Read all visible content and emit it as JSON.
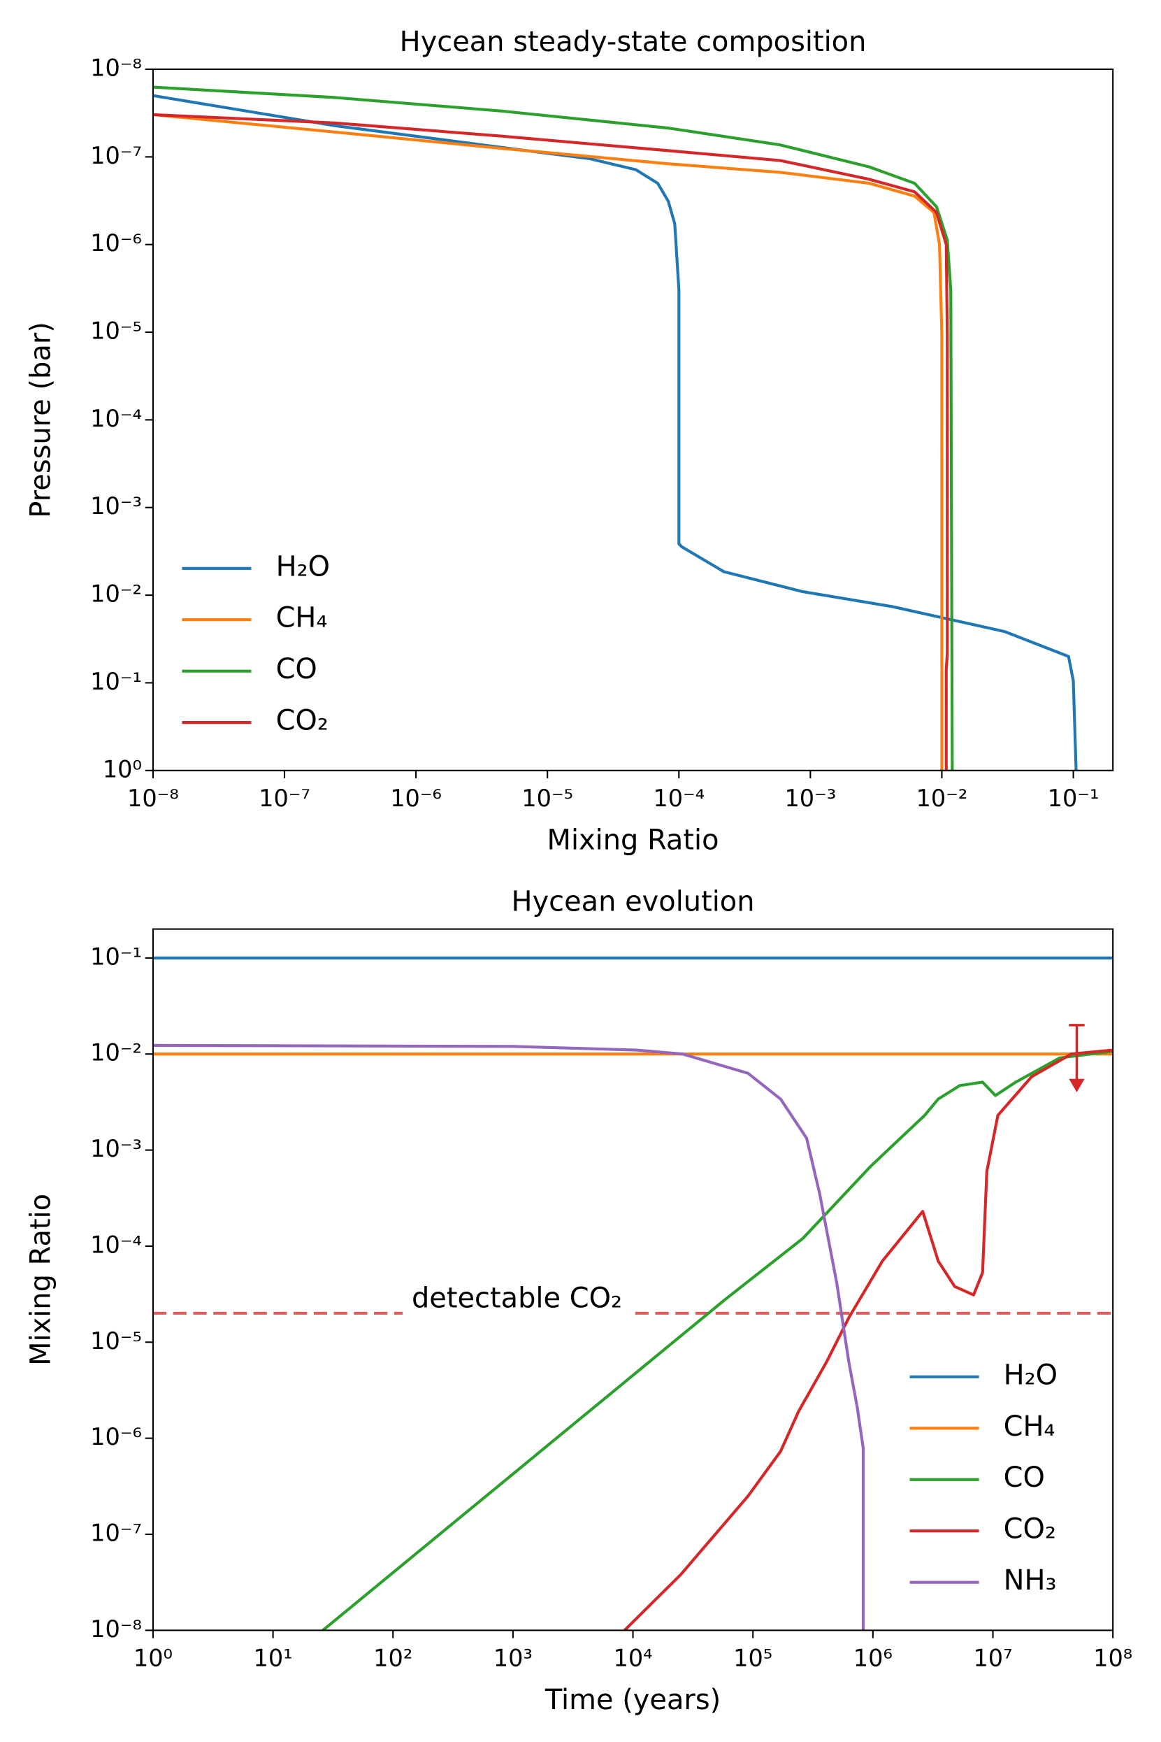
{
  "chart_data": [
    {
      "type": "line",
      "title": "Hycean steady-state composition",
      "x_label": "Mixing Ratio",
      "y_label": "Pressure (bar)",
      "xscale": "log",
      "yscale": "log",
      "xlim": [
        1e-08,
        0.2
      ],
      "ylim": [
        1,
        1e-08
      ],
      "legend": "lower left",
      "xticks": [
        {
          "value": 1e-08,
          "label": "10⁻⁸"
        },
        {
          "value": 1e-07,
          "label": "10⁻⁷"
        },
        {
          "value": 1e-06,
          "label": "10⁻⁶"
        },
        {
          "value": 1e-05,
          "label": "10⁻⁵"
        },
        {
          "value": 0.0001,
          "label": "10⁻⁴"
        },
        {
          "value": 0.001,
          "label": "10⁻³"
        },
        {
          "value": 0.01,
          "label": "10⁻²"
        },
        {
          "value": 0.1,
          "label": "10⁻¹"
        }
      ],
      "yticks": [
        {
          "value": 1e-08,
          "label": "10⁻⁸"
        },
        {
          "value": 1e-07,
          "label": "10⁻⁷"
        },
        {
          "value": 1e-06,
          "label": "10⁻⁶"
        },
        {
          "value": 1e-05,
          "label": "10⁻⁵"
        },
        {
          "value": 0.0001,
          "label": "10⁻⁴"
        },
        {
          "value": 0.001,
          "label": "10⁻³"
        },
        {
          "value": 0.01,
          "label": "10⁻²"
        },
        {
          "value": 0.1,
          "label": "10⁻¹"
        },
        {
          "value": 1,
          "label": "10⁰"
        }
      ],
      "series": [
        {
          "name": "H₂O",
          "color": "#1f77b4",
          "x": [
            1e-08,
            2.4e-07,
            4.5e-06,
            2.1e-05,
            4.7e-05,
            6.9e-05,
            8.3e-05,
            9.3e-05,
            0.0001,
            0.0001,
            0.000105,
            0.00022,
            0.00087,
            0.0042,
            0.03,
            0.092,
            0.1,
            0.105
          ],
          "values": [
            2e-08,
            4.4e-08,
            7.8e-08,
            1.05e-07,
            1.4e-07,
            2e-07,
            3.2e-07,
            5.8e-07,
            3.3e-06,
            0.0026,
            0.0028,
            0.0054,
            0.0091,
            0.0135,
            0.026,
            0.05,
            0.095,
            1
          ]
        },
        {
          "name": "CH₄",
          "color": "#ff7f0e",
          "x": [
            1e-08,
            2.4e-07,
            4.5e-06,
            8.4e-05,
            0.00059,
            0.0028,
            0.0062,
            0.0087,
            0.0096,
            0.01,
            0.01
          ],
          "values": [
            3.3e-08,
            5.2e-08,
            8e-08,
            1.2e-07,
            1.5e-07,
            2e-07,
            2.8e-07,
            4.3e-07,
            1e-06,
            1.1e-05,
            1
          ]
        },
        {
          "name": "CO",
          "color": "#2ca02c",
          "x": [
            1e-08,
            2.4e-07,
            4.5e-06,
            8.4e-05,
            0.00059,
            0.0028,
            0.0062,
            0.0091,
            0.011,
            0.0117,
            0.012
          ],
          "values": [
            1.6e-08,
            2.1e-08,
            3e-08,
            4.7e-08,
            7.3e-08,
            1.3e-07,
            2e-07,
            3.7e-07,
            8.9e-07,
            3.3e-06,
            1
          ]
        },
        {
          "name": "CO₂",
          "color": "#d62728",
          "x": [
            1e-08,
            2.4e-07,
            4.5e-06,
            8.4e-05,
            0.00059,
            0.0028,
            0.0062,
            0.0091,
            0.0108,
            0.011,
            0.011,
            0.0108,
            0.0108
          ],
          "values": [
            3.3e-08,
            4.1e-08,
            5.8e-08,
            8.5e-08,
            1.1e-07,
            1.8e-07,
            2.5e-07,
            4.3e-07,
            1e-06,
            1.1e-05,
            0.046,
            0.071,
            1
          ]
        }
      ]
    },
    {
      "type": "line",
      "title": "Hycean evolution",
      "x_label": "Time (years)",
      "y_label": "Mixing Ratio",
      "xscale": "log",
      "yscale": "log",
      "xlim": [
        1,
        100000000.0
      ],
      "ylim": [
        1e-08,
        0.2
      ],
      "legend": "lower right",
      "xticks": [
        {
          "value": 1,
          "label": "10⁰"
        },
        {
          "value": 10,
          "label": "10¹"
        },
        {
          "value": 100,
          "label": "10²"
        },
        {
          "value": 1000,
          "label": "10³"
        },
        {
          "value": 10000,
          "label": "10⁴"
        },
        {
          "value": 100000,
          "label": "10⁵"
        },
        {
          "value": 1000000,
          "label": "10⁶"
        },
        {
          "value": 10000000,
          "label": "10⁷"
        },
        {
          "value": 100000000,
          "label": "10⁸"
        }
      ],
      "yticks": [
        {
          "value": 1e-08,
          "label": "10⁻⁸"
        },
        {
          "value": 1e-07,
          "label": "10⁻⁷"
        },
        {
          "value": 1e-06,
          "label": "10⁻⁶"
        },
        {
          "value": 1e-05,
          "label": "10⁻⁵"
        },
        {
          "value": 0.0001,
          "label": "10⁻⁴"
        },
        {
          "value": 0.001,
          "label": "10⁻³"
        },
        {
          "value": 0.01,
          "label": "10⁻²"
        },
        {
          "value": 0.1,
          "label": "10⁻¹"
        }
      ],
      "series": [
        {
          "name": "H₂O",
          "color": "#1f77b4",
          "x": [
            1,
            100000000
          ],
          "values": [
            0.1,
            0.1
          ]
        },
        {
          "name": "CH₄",
          "color": "#ff7f0e",
          "x": [
            1,
            100000000
          ],
          "values": [
            0.01,
            0.01
          ]
        },
        {
          "name": "CO",
          "color": "#2ca02c",
          "x": [
            26,
            59000,
            260000,
            960000,
            2700000,
            3500000,
            5300000,
            8200000,
            10500000,
            15500000,
            36000000,
            100000000
          ],
          "values": [
            1e-08,
            2.8e-05,
            0.00012,
            0.00068,
            0.0023,
            0.0034,
            0.0047,
            0.0051,
            0.0037,
            0.0051,
            0.0091,
            0.0107
          ]
        },
        {
          "name": "CO₂",
          "color": "#d62728",
          "x": [
            8500,
            25000,
            91000,
            170000,
            240000,
            410000,
            630000,
            1200000,
            2600000,
            3500000,
            4800000,
            6900000,
            8200000,
            8900000,
            11000000,
            21000000,
            45000000,
            100000000
          ],
          "values": [
            1e-08,
            3.8e-08,
            2.5e-07,
            7.3e-07,
            1.9e-06,
            6.2e-06,
            1.8e-05,
            7e-05,
            0.00023,
            7e-05,
            3.8e-05,
            3.1e-05,
            5.3e-05,
            0.0006,
            0.0023,
            0.0058,
            0.01,
            0.011
          ]
        },
        {
          "name": "NH₃",
          "color": "#9467bd",
          "x": [
            1,
            1000,
            10700,
            26000,
            91000,
            170000,
            280000,
            360000,
            500000,
            630000,
            740000,
            830000,
            830000
          ],
          "values": [
            0.0123,
            0.012,
            0.011,
            0.01,
            0.0063,
            0.0034,
            0.00133,
            0.00035,
            4.1e-05,
            6.2e-06,
            2.1e-06,
            7.9e-07,
            1e-08
          ]
        }
      ],
      "reference_line": {
        "value": 2e-05,
        "label": "detectable CO₂",
        "color": "#e05a5a",
        "style": "dashed"
      },
      "upper_limit": {
        "x": 50000000,
        "values": [
          0.02,
          0.004
        ],
        "color": "#d62728"
      }
    }
  ]
}
